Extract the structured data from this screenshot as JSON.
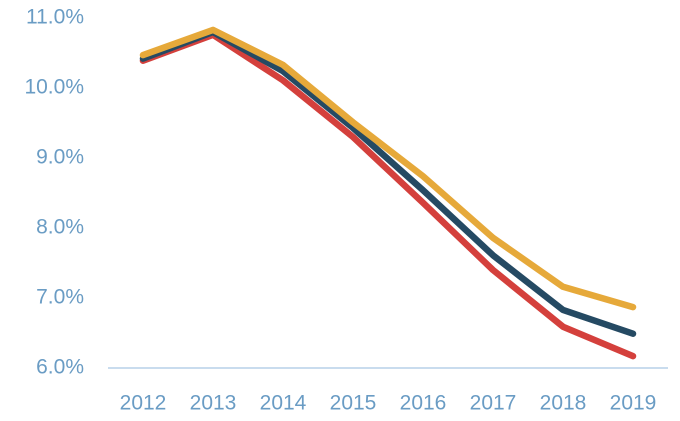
{
  "chart_data": {
    "type": "line",
    "categories": [
      "2012",
      "2013",
      "2014",
      "2015",
      "2016",
      "2017",
      "2018",
      "2019"
    ],
    "series": [
      {
        "color": "#d4403c",
        "values": [
          10.39,
          10.76,
          10.11,
          9.3,
          8.36,
          7.4,
          6.59,
          6.17
        ]
      },
      {
        "color": "#254a63",
        "values": [
          10.42,
          10.8,
          10.24,
          9.43,
          8.54,
          7.61,
          6.83,
          6.49
        ]
      },
      {
        "color": "#e6a93a",
        "values": [
          10.47,
          10.83,
          10.33,
          9.51,
          8.74,
          7.86,
          7.16,
          6.87
        ]
      }
    ],
    "ylim": [
      6,
      11
    ],
    "yticks": [
      {
        "value": 6,
        "label": "6.0%"
      },
      {
        "value": 7,
        "label": "7.0%"
      },
      {
        "value": 8,
        "label": "8.0%"
      },
      {
        "value": 9,
        "label": "9.0%"
      },
      {
        "value": 10,
        "label": "10.0%"
      },
      {
        "value": 11,
        "label": "11.0%"
      }
    ],
    "grid": false
  }
}
